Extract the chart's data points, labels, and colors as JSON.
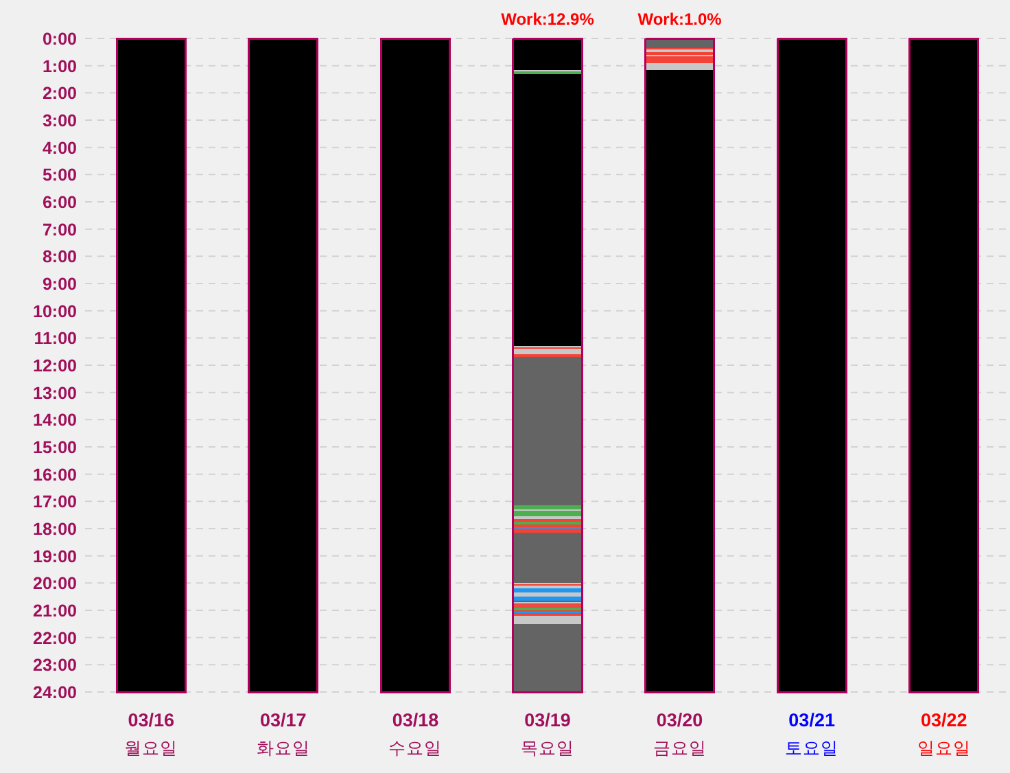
{
  "chart_data": {
    "type": "bar",
    "stacked": true,
    "grid": "y",
    "categories": [
      "03/16\n월요일",
      "03/17\n화요일",
      "03/18\n수요일",
      "03/19\n목요일",
      "03/20\n금요일",
      "03/21\n토요일",
      "03/22\n일요일"
    ],
    "ylim": [
      24,
      0
    ],
    "yticks": [
      {
        "value": 0,
        "label": "0:00"
      },
      {
        "value": 1,
        "label": "1:00"
      },
      {
        "value": 2,
        "label": "2:00"
      },
      {
        "value": 3,
        "label": "3:00"
      },
      {
        "value": 4,
        "label": "4:00"
      },
      {
        "value": 5,
        "label": "5:00"
      },
      {
        "value": 6,
        "label": "6:00"
      },
      {
        "value": 7,
        "label": "7:00"
      },
      {
        "value": 8,
        "label": "8:00"
      },
      {
        "value": 9,
        "label": "9:00"
      },
      {
        "value": 10,
        "label": "10:00"
      },
      {
        "value": 11,
        "label": "11:00"
      },
      {
        "value": 12,
        "label": "12:00"
      },
      {
        "value": 13,
        "label": "13:00"
      },
      {
        "value": 14,
        "label": "14:00"
      },
      {
        "value": 15,
        "label": "15:00"
      },
      {
        "value": 16,
        "label": "16:00"
      },
      {
        "value": 17,
        "label": "17:00"
      },
      {
        "value": 18,
        "label": "18:00"
      },
      {
        "value": 19,
        "label": "19:00"
      },
      {
        "value": 20,
        "label": "20:00"
      },
      {
        "value": 21,
        "label": "21:00"
      },
      {
        "value": 22,
        "label": "22:00"
      },
      {
        "value": 23,
        "label": "23:00"
      },
      {
        "value": 24,
        "label": "24:00"
      }
    ],
    "annotations": [
      {
        "text": "Work:12.9%",
        "x": "03/19\n목요일",
        "y": 0
      },
      {
        "text": "Work:1.0%",
        "x": "03/20\n금요일",
        "y": 0
      }
    ],
    "series": [
      {
        "values": [
          24,
          24,
          24,
          1.15,
          0.35,
          24,
          24
        ],
        "colors": [
          "#000000",
          "#000000",
          "#000000",
          "#000000",
          "#646464",
          "#000000",
          "#000000"
        ]
      },
      {
        "values": [
          null,
          null,
          null,
          0.05,
          0.05,
          null,
          null
        ],
        "colors": [
          null,
          null,
          null,
          "#c8c8c8",
          "#f44336",
          null,
          null
        ]
      },
      {
        "values": [
          null,
          null,
          null,
          0.1,
          0.1,
          null,
          null
        ],
        "colors": [
          null,
          null,
          null,
          "#4caf50",
          "#c8c8c8",
          null,
          null
        ]
      },
      {
        "values": [
          null,
          null,
          null,
          10,
          0.1,
          null,
          null
        ],
        "colors": [
          null,
          null,
          null,
          "#000000",
          "#f44336",
          null,
          null
        ]
      },
      {
        "values": [
          null,
          null,
          null,
          0.05,
          0.05,
          null,
          null
        ],
        "colors": [
          null,
          null,
          null,
          "#c8c8c8",
          "#c8c8c8",
          null,
          null
        ]
      },
      {
        "values": [
          null,
          null,
          null,
          0.05,
          0.25,
          null,
          null
        ],
        "colors": [
          null,
          null,
          null,
          "#f44336",
          "#f44336",
          null,
          null
        ]
      },
      {
        "values": [
          null,
          null,
          null,
          0.2,
          0.25,
          null,
          null
        ],
        "colors": [
          null,
          null,
          null,
          "#c8c8c8",
          "#c8c8c8",
          null,
          null
        ]
      },
      {
        "values": [
          null,
          null,
          null,
          0.1,
          22.85,
          null,
          null
        ],
        "colors": [
          null,
          null,
          null,
          "#f44336",
          "#000000",
          null,
          null
        ]
      },
      {
        "values": [
          null,
          null,
          null,
          5.45,
          null,
          null,
          null
        ],
        "colors": [
          null,
          null,
          null,
          "#646464",
          null,
          null,
          null
        ]
      },
      {
        "values": [
          null,
          null,
          null,
          0.15,
          null,
          null,
          null
        ],
        "colors": [
          null,
          null,
          null,
          "#4caf50",
          null,
          null,
          null
        ]
      },
      {
        "values": [
          null,
          null,
          null,
          0.05,
          null,
          null,
          null
        ],
        "colors": [
          null,
          null,
          null,
          "#c8c8c8",
          null,
          null,
          null
        ]
      },
      {
        "values": [
          null,
          null,
          null,
          0.2,
          null,
          null,
          null
        ],
        "colors": [
          null,
          null,
          null,
          "#4caf50",
          null,
          null,
          null
        ]
      },
      {
        "values": [
          null,
          null,
          null,
          0.1,
          null,
          null,
          null
        ],
        "colors": [
          null,
          null,
          null,
          "#c8c8c8",
          null,
          null,
          null
        ]
      },
      {
        "values": [
          null,
          null,
          null,
          0.1,
          null,
          null,
          null
        ],
        "colors": [
          null,
          null,
          null,
          "#f44336",
          null,
          null,
          null
        ]
      },
      {
        "values": [
          null,
          null,
          null,
          0.1,
          null,
          null,
          null
        ],
        "colors": [
          null,
          null,
          null,
          "#4caf50",
          null,
          null,
          null
        ]
      },
      {
        "values": [
          null,
          null,
          null,
          0.1,
          null,
          null,
          null
        ],
        "colors": [
          null,
          null,
          null,
          "#f44336",
          null,
          null,
          null
        ]
      },
      {
        "values": [
          null,
          null,
          null,
          0.05,
          null,
          null,
          null
        ],
        "colors": [
          null,
          null,
          null,
          "#2196f3",
          null,
          null,
          null
        ]
      },
      {
        "values": [
          null,
          null,
          null,
          0.15,
          null,
          null,
          null
        ],
        "colors": [
          null,
          null,
          null,
          "#f44336",
          null,
          null,
          null
        ]
      },
      {
        "values": [
          null,
          null,
          null,
          1.85,
          null,
          null,
          null
        ],
        "colors": [
          null,
          null,
          null,
          "#646464",
          null,
          null,
          null
        ]
      },
      {
        "values": [
          null,
          null,
          null,
          0.05,
          null,
          null,
          null
        ],
        "colors": [
          null,
          null,
          null,
          "#c8c8c8",
          null,
          null,
          null
        ]
      },
      {
        "values": [
          null,
          null,
          null,
          0.05,
          null,
          null,
          null
        ],
        "colors": [
          null,
          null,
          null,
          "#f44336",
          null,
          null,
          null
        ]
      },
      {
        "values": [
          null,
          null,
          null,
          0.1,
          null,
          null,
          null
        ],
        "colors": [
          null,
          null,
          null,
          "#c8c8c8",
          null,
          null,
          null
        ]
      },
      {
        "values": [
          null,
          null,
          null,
          0.15,
          null,
          null,
          null
        ],
        "colors": [
          null,
          null,
          null,
          "#2196f3",
          null,
          null,
          null
        ]
      },
      {
        "values": [
          null,
          null,
          null,
          0.15,
          null,
          null,
          null
        ],
        "colors": [
          null,
          null,
          null,
          "#c8c8c8",
          null,
          null,
          null
        ]
      },
      {
        "values": [
          null,
          null,
          null,
          0.15,
          null,
          null,
          null
        ],
        "colors": [
          null,
          null,
          null,
          "#2196f3",
          null,
          null,
          null
        ]
      },
      {
        "values": [
          null,
          null,
          null,
          0.05,
          null,
          null,
          null
        ],
        "colors": [
          null,
          null,
          null,
          "#646464",
          null,
          null,
          null
        ]
      },
      {
        "values": [
          null,
          null,
          null,
          0.05,
          null,
          null,
          null
        ],
        "colors": [
          null,
          null,
          null,
          "#c8c8c8",
          null,
          null,
          null
        ]
      },
      {
        "values": [
          null,
          null,
          null,
          0.05,
          null,
          null,
          null
        ],
        "colors": [
          null,
          null,
          null,
          "#f44336",
          null,
          null,
          null
        ]
      },
      {
        "values": [
          null,
          null,
          null,
          0.05,
          null,
          null,
          null
        ],
        "colors": [
          null,
          null,
          null,
          "#2196f3",
          null,
          null,
          null
        ]
      },
      {
        "values": [
          null,
          null,
          null,
          0.05,
          null,
          null,
          null
        ],
        "colors": [
          null,
          null,
          null,
          "#f44336",
          null,
          null,
          null
        ]
      },
      {
        "values": [
          null,
          null,
          null,
          0.1,
          null,
          null,
          null
        ],
        "colors": [
          null,
          null,
          null,
          "#4caf50",
          null,
          null,
          null
        ]
      },
      {
        "values": [
          null,
          null,
          null,
          0.05,
          null,
          null,
          null
        ],
        "colors": [
          null,
          null,
          null,
          "#f44336",
          null,
          null,
          null
        ]
      },
      {
        "values": [
          null,
          null,
          null,
          0.05,
          null,
          null,
          null
        ],
        "colors": [
          null,
          null,
          null,
          "#2196f3",
          null,
          null,
          null
        ]
      },
      {
        "values": [
          null,
          null,
          null,
          0.1,
          null,
          null,
          null
        ],
        "colors": [
          null,
          null,
          null,
          "#f44336",
          null,
          null,
          null
        ]
      },
      {
        "values": [
          null,
          null,
          null,
          0.3,
          null,
          null,
          null
        ],
        "colors": [
          null,
          null,
          null,
          "#c8c8c8",
          null,
          null,
          null
        ]
      },
      {
        "values": [
          null,
          null,
          null,
          2.5,
          null,
          null,
          null
        ],
        "colors": [
          null,
          null,
          null,
          "#646464",
          null,
          null,
          null
        ]
      }
    ]
  }
}
